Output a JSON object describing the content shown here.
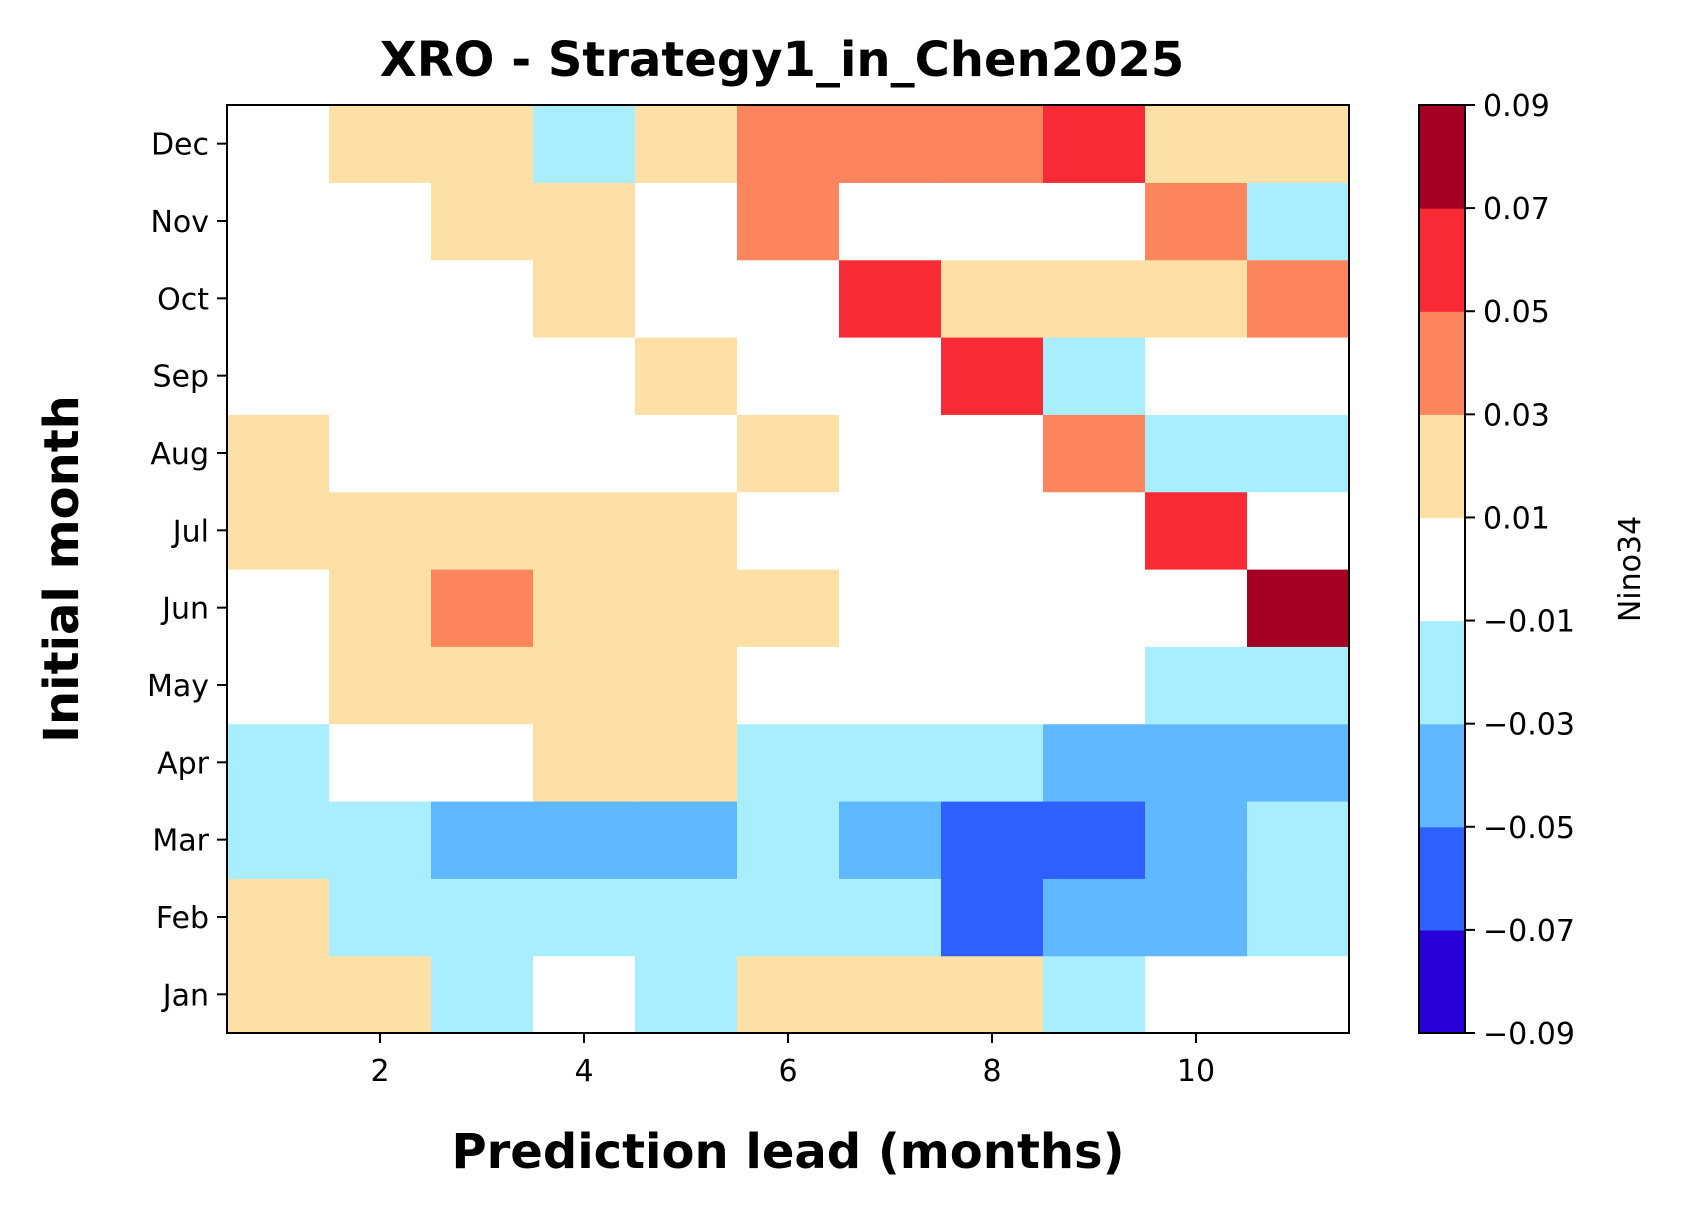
{
  "chart_data": {
    "type": "heatmap",
    "title": "XRO - Strategy1_in_Chen2025",
    "xlabel": "Prediction lead (months)",
    "ylabel": "Initial month",
    "x": [
      1,
      2,
      3,
      4,
      5,
      6,
      7,
      8,
      9,
      10,
      11
    ],
    "x_ticks": [
      2,
      4,
      6,
      8,
      10
    ],
    "x_tick_labels": [
      "2",
      "4",
      "6",
      "8",
      "10"
    ],
    "y_categories": [
      "Jan",
      "Feb",
      "Mar",
      "Apr",
      "May",
      "Jun",
      "Jul",
      "Aug",
      "Sep",
      "Oct",
      "Nov",
      "Dec"
    ],
    "values": [
      [
        0.02,
        0.02,
        -0.02,
        0.0,
        -0.02,
        0.02,
        0.02,
        0.02,
        -0.02,
        0.0,
        0.0
      ],
      [
        0.02,
        -0.02,
        -0.02,
        -0.02,
        -0.02,
        -0.02,
        -0.02,
        -0.06,
        -0.04,
        -0.04,
        -0.02
      ],
      [
        -0.02,
        -0.02,
        -0.04,
        -0.04,
        -0.04,
        -0.02,
        -0.04,
        -0.06,
        -0.06,
        -0.04,
        -0.02
      ],
      [
        -0.02,
        0.0,
        0.0,
        0.02,
        0.02,
        -0.02,
        -0.02,
        -0.02,
        -0.04,
        -0.04,
        -0.04
      ],
      [
        0.0,
        0.02,
        0.02,
        0.02,
        0.02,
        0.0,
        0.0,
        0.0,
        0.0,
        -0.02,
        -0.02
      ],
      [
        0.0,
        0.02,
        0.04,
        0.02,
        0.02,
        0.02,
        0.0,
        0.0,
        0.0,
        0.0,
        0.08
      ],
      [
        0.02,
        0.02,
        0.02,
        0.02,
        0.02,
        0.0,
        0.0,
        0.0,
        0.0,
        0.06,
        0.0
      ],
      [
        0.02,
        0.0,
        0.0,
        0.0,
        0.0,
        0.02,
        0.0,
        0.0,
        0.04,
        -0.02,
        -0.02
      ],
      [
        0.0,
        0.0,
        0.0,
        0.0,
        0.02,
        0.0,
        0.0,
        0.06,
        -0.02,
        0.0,
        0.0
      ],
      [
        0.0,
        0.0,
        0.0,
        0.02,
        0.0,
        0.0,
        0.06,
        0.02,
        0.02,
        0.02,
        0.04
      ],
      [
        0.0,
        0.0,
        0.02,
        0.02,
        0.0,
        0.04,
        0.0,
        0.0,
        0.0,
        0.04,
        -0.02
      ],
      [
        0.0,
        0.02,
        0.02,
        -0.02,
        0.02,
        0.04,
        0.04,
        0.04,
        0.06,
        0.02,
        0.02
      ]
    ],
    "colorbar": {
      "label": "Nino34",
      "boundaries": [
        -0.09,
        -0.07,
        -0.05,
        -0.03,
        -0.01,
        0.01,
        0.03,
        0.05,
        0.07,
        0.09
      ],
      "tick_labels": [
        "−0.09",
        "−0.07",
        "−0.05",
        "−0.03",
        "−0.01",
        "0.01",
        "0.03",
        "0.05",
        "0.07",
        "0.09"
      ],
      "colors": [
        "#2a00d8",
        "#2e5fff",
        "#5fb8fd",
        "#a8eefe",
        "#ffffff",
        "#fde0a6",
        "#fd855d",
        "#f72a35",
        "#a30023"
      ]
    }
  }
}
